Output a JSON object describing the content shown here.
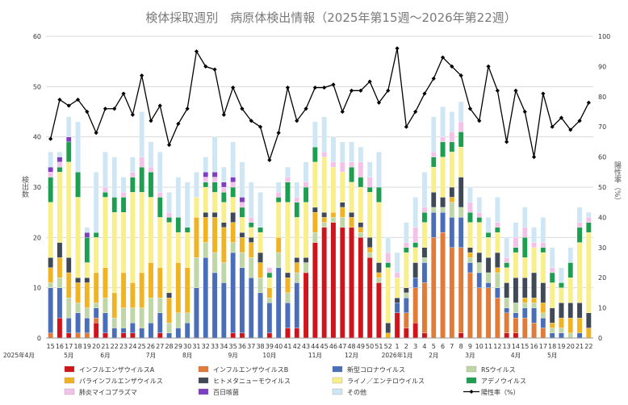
{
  "chart_data": {
    "type": "bar",
    "title": "検体採取週別　病原体検出情報（2025年第15週～2026年第22週）",
    "ylabel": "検出数",
    "y2label": "陽性率（%）",
    "ylim": [
      0,
      60
    ],
    "y2lim": [
      0,
      100
    ],
    "yticks": [
      "0",
      "10",
      "20",
      "30",
      "40",
      "50",
      "60"
    ],
    "y2ticks": [
      "0",
      "10",
      "20",
      "30",
      "40",
      "50",
      "60",
      "70",
      "80",
      "90",
      "100"
    ],
    "grid": true,
    "legend_position": "bottom",
    "categories": [
      "15",
      "16",
      "17",
      "18",
      "19",
      "20",
      "21",
      "22",
      "23",
      "24",
      "25",
      "26",
      "27",
      "28",
      "29",
      "30",
      "31",
      "32",
      "33",
      "34",
      "35",
      "36",
      "37",
      "38",
      "39",
      "40",
      "41",
      "42",
      "43",
      "44",
      "45",
      "46",
      "47",
      "48",
      "49",
      "50",
      "51",
      "52",
      "1",
      "2",
      "3",
      "4",
      "5",
      "6",
      "7",
      "8",
      "9",
      "10",
      "11",
      "12",
      "13",
      "14",
      "15",
      "16",
      "17",
      "18",
      "19",
      "20",
      "21",
      "22"
    ],
    "period_labels": [
      {
        "text": "2025年4月",
        "index": 0,
        "row": 2
      },
      {
        "text": "5月",
        "index": 2
      },
      {
        "text": "6月",
        "index": 6
      },
      {
        "text": "7月",
        "index": 11
      },
      {
        "text": "8月",
        "index": 15
      },
      {
        "text": "9月",
        "index": 20
      },
      {
        "text": "10月",
        "index": 24
      },
      {
        "text": "11月",
        "index": 29
      },
      {
        "text": "12月",
        "index": 33
      },
      {
        "text": "2026年1月",
        "index": 38
      },
      {
        "text": "2月",
        "index": 42
      },
      {
        "text": "3月",
        "index": 46
      },
      {
        "text": "4月",
        "index": 51
      },
      {
        "text": "5月",
        "index": 55
      }
    ],
    "series": [
      {
        "name": "インフルエンザウイルスA",
        "color": "#d0141b",
        "values": [
          0,
          4,
          1,
          0,
          0,
          3,
          1,
          0,
          1,
          1,
          0,
          0,
          1,
          0,
          0,
          0,
          0,
          0,
          0,
          0,
          1,
          1,
          0,
          0,
          1,
          0,
          2,
          2,
          13,
          19,
          22,
          23,
          22,
          22,
          20,
          16,
          11,
          0,
          5,
          2,
          3,
          1,
          0,
          0,
          0,
          1,
          0,
          0,
          0,
          0,
          1,
          1,
          0,
          0,
          0,
          0,
          0,
          0,
          0,
          0
        ]
      },
      {
        "name": "インフルエンザウイルスB",
        "color": "#e07b39",
        "values": [
          1,
          0,
          0,
          1,
          1,
          1,
          0,
          0,
          0,
          0,
          0,
          0,
          0,
          0,
          0,
          0,
          0,
          0,
          0,
          0,
          0,
          0,
          0,
          0,
          0,
          0,
          0,
          0,
          0,
          0,
          0,
          0,
          0,
          0,
          0,
          0,
          0,
          0,
          0,
          3,
          7,
          10,
          20,
          21,
          18,
          17,
          13,
          10,
          10,
          8,
          4,
          3,
          4,
          3,
          2,
          0,
          0,
          0,
          0,
          0
        ]
      },
      {
        "name": "新型コロナウイルス",
        "color": "#4a6fb8",
        "values": [
          9,
          6,
          3,
          4,
          3,
          2,
          4,
          2,
          1,
          2,
          2,
          3,
          4,
          1,
          2,
          3,
          10,
          16,
          13,
          11,
          16,
          13,
          12,
          9,
          6,
          14,
          5,
          9,
          0,
          0,
          0,
          0,
          0,
          0,
          0,
          0,
          0,
          0,
          2,
          3,
          2,
          4,
          5,
          4,
          6,
          6,
          2,
          3,
          1,
          2,
          1,
          1,
          2,
          3,
          2,
          1,
          1,
          0,
          1,
          0
        ]
      },
      {
        "name": "RSウイルス",
        "color": "#bfd6a6",
        "values": [
          1,
          2,
          4,
          2,
          2,
          1,
          3,
          2,
          4,
          3,
          4,
          5,
          3,
          2,
          3,
          2,
          6,
          3,
          4,
          4,
          2,
          3,
          4,
          3,
          1,
          3,
          2,
          2,
          2,
          2,
          1,
          1,
          2,
          0,
          1,
          1,
          1,
          0,
          0,
          1,
          0,
          1,
          1,
          1,
          3,
          2,
          1,
          2,
          2,
          3,
          2,
          2,
          1,
          1,
          1,
          1,
          1,
          1,
          0,
          0
        ]
      },
      {
        "name": "パラインフルエンザウイルス",
        "color": "#f0b323",
        "values": [
          3,
          4,
          5,
          4,
          5,
          6,
          6,
          5,
          7,
          5,
          7,
          7,
          6,
          5,
          10,
          9,
          8,
          5,
          7,
          7,
          4,
          3,
          3,
          3,
          2,
          3,
          3,
          2,
          0,
          4,
          1,
          1,
          2,
          2,
          1,
          1,
          1,
          1,
          0,
          0,
          0,
          0,
          0,
          0,
          1,
          0,
          1,
          0,
          0,
          1,
          0,
          0,
          1,
          1,
          2,
          1,
          2,
          3,
          3,
          2
        ]
      },
      {
        "name": "ヒトメタニューモウイルス",
        "color": "#3f4a56",
        "values": [
          2,
          3,
          3,
          1,
          1,
          0,
          0,
          0,
          0,
          0,
          0,
          0,
          0,
          1,
          0,
          0,
          0,
          1,
          1,
          1,
          2,
          1,
          1,
          2,
          0,
          0,
          1,
          1,
          1,
          1,
          1,
          0,
          1,
          1,
          1,
          2,
          2,
          2,
          1,
          1,
          3,
          2,
          3,
          2,
          2,
          6,
          1,
          2,
          3,
          3,
          3,
          5,
          4,
          5,
          4,
          3,
          3,
          3,
          3,
          3
        ]
      },
      {
        "name": "ライノ／エンテロウイルス",
        "color": "#f8ee8a",
        "values": [
          11,
          14,
          19,
          16,
          3,
          7,
          14,
          16,
          12,
          18,
          16,
          13,
          10,
          14,
          6,
          7,
          4,
          5,
          4,
          4,
          3,
          3,
          2,
          4,
          2,
          7,
          14,
          8,
          11,
          9,
          11,
          9,
          6,
          6,
          7,
          9,
          12,
          11,
          4,
          7,
          3,
          5,
          5,
          8,
          7,
          6,
          5,
          6,
          4,
          4,
          3,
          5,
          4,
          5,
          6,
          5,
          3,
          5,
          12,
          16
        ]
      },
      {
        "name": "アデノウイルス",
        "color": "#1e9e50",
        "values": [
          5,
          1,
          4,
          5,
          5,
          1,
          1,
          3,
          3,
          3,
          5,
          5,
          4,
          1,
          3,
          1,
          0,
          1,
          2,
          2,
          2,
          2,
          1,
          1,
          1,
          1,
          4,
          3,
          3,
          3,
          0,
          0,
          0,
          3,
          2,
          1,
          3,
          1,
          0,
          1,
          1,
          2,
          2,
          3,
          2,
          3,
          2,
          1,
          1,
          1,
          1,
          1,
          4,
          0,
          1,
          2,
          1,
          3,
          3,
          2
        ]
      },
      {
        "name": "肺炎マイコプラズマ",
        "color": "#f3c2e8",
        "values": [
          1,
          1,
          0,
          0,
          0,
          0,
          1,
          0,
          1,
          1,
          2,
          1,
          1,
          1,
          0,
          0,
          0,
          1,
          1,
          1,
          1,
          1,
          1,
          0,
          1,
          1,
          1,
          1,
          1,
          0,
          1,
          1,
          2,
          1,
          3,
          2,
          0,
          2,
          1,
          1,
          3,
          1,
          1,
          1,
          2,
          2,
          2,
          1,
          0,
          1,
          1,
          2,
          2,
          1,
          1,
          1,
          0,
          0,
          1,
          1
        ]
      },
      {
        "name": "百日咳菌",
        "color": "#7e3fc0",
        "values": [
          1,
          1,
          1,
          0,
          1,
          0,
          0,
          0,
          0,
          0,
          0,
          0,
          0,
          0,
          0,
          0,
          0,
          1,
          1,
          1,
          1,
          1,
          0,
          0,
          0,
          0,
          0,
          0,
          0,
          0,
          0,
          0,
          0,
          0,
          0,
          0,
          0,
          0,
          0,
          0,
          0,
          0,
          0,
          0,
          0,
          0,
          0,
          0,
          0,
          0,
          0,
          0,
          0,
          0,
          0,
          0,
          0,
          0,
          0,
          0
        ]
      },
      {
        "name": "その他",
        "color": "#cfe6f5",
        "values": [
          3,
          1,
          4,
          10,
          1,
          12,
          7,
          8,
          3,
          3,
          9,
          5,
          8,
          4,
          8,
          9,
          5,
          3,
          7,
          3,
          7,
          7,
          7,
          7,
          0,
          2,
          2,
          3,
          4,
          5,
          7,
          5,
          4,
          4,
          3,
          3,
          7,
          3,
          4,
          4,
          6,
          7,
          7,
          6,
          4,
          4,
          3,
          3,
          3,
          5,
          4,
          3,
          4,
          3,
          5,
          4,
          3,
          3,
          3,
          1
        ]
      }
    ],
    "line": {
      "name": "陽性率（%）",
      "color": "#000000",
      "values": [
        66,
        79,
        77,
        79,
        75,
        68,
        76,
        76,
        81,
        74,
        87,
        72,
        77,
        64,
        71,
        76,
        95,
        90,
        89,
        74,
        83,
        76,
        72,
        70,
        59,
        68,
        83,
        72,
        76,
        83,
        83,
        84,
        75,
        82,
        82,
        85,
        78,
        82,
        96,
        70,
        75,
        81,
        86,
        93,
        90,
        87,
        76,
        72,
        90,
        82,
        65,
        82,
        75,
        60,
        81,
        70,
        73,
        69,
        72,
        78
      ]
    }
  }
}
